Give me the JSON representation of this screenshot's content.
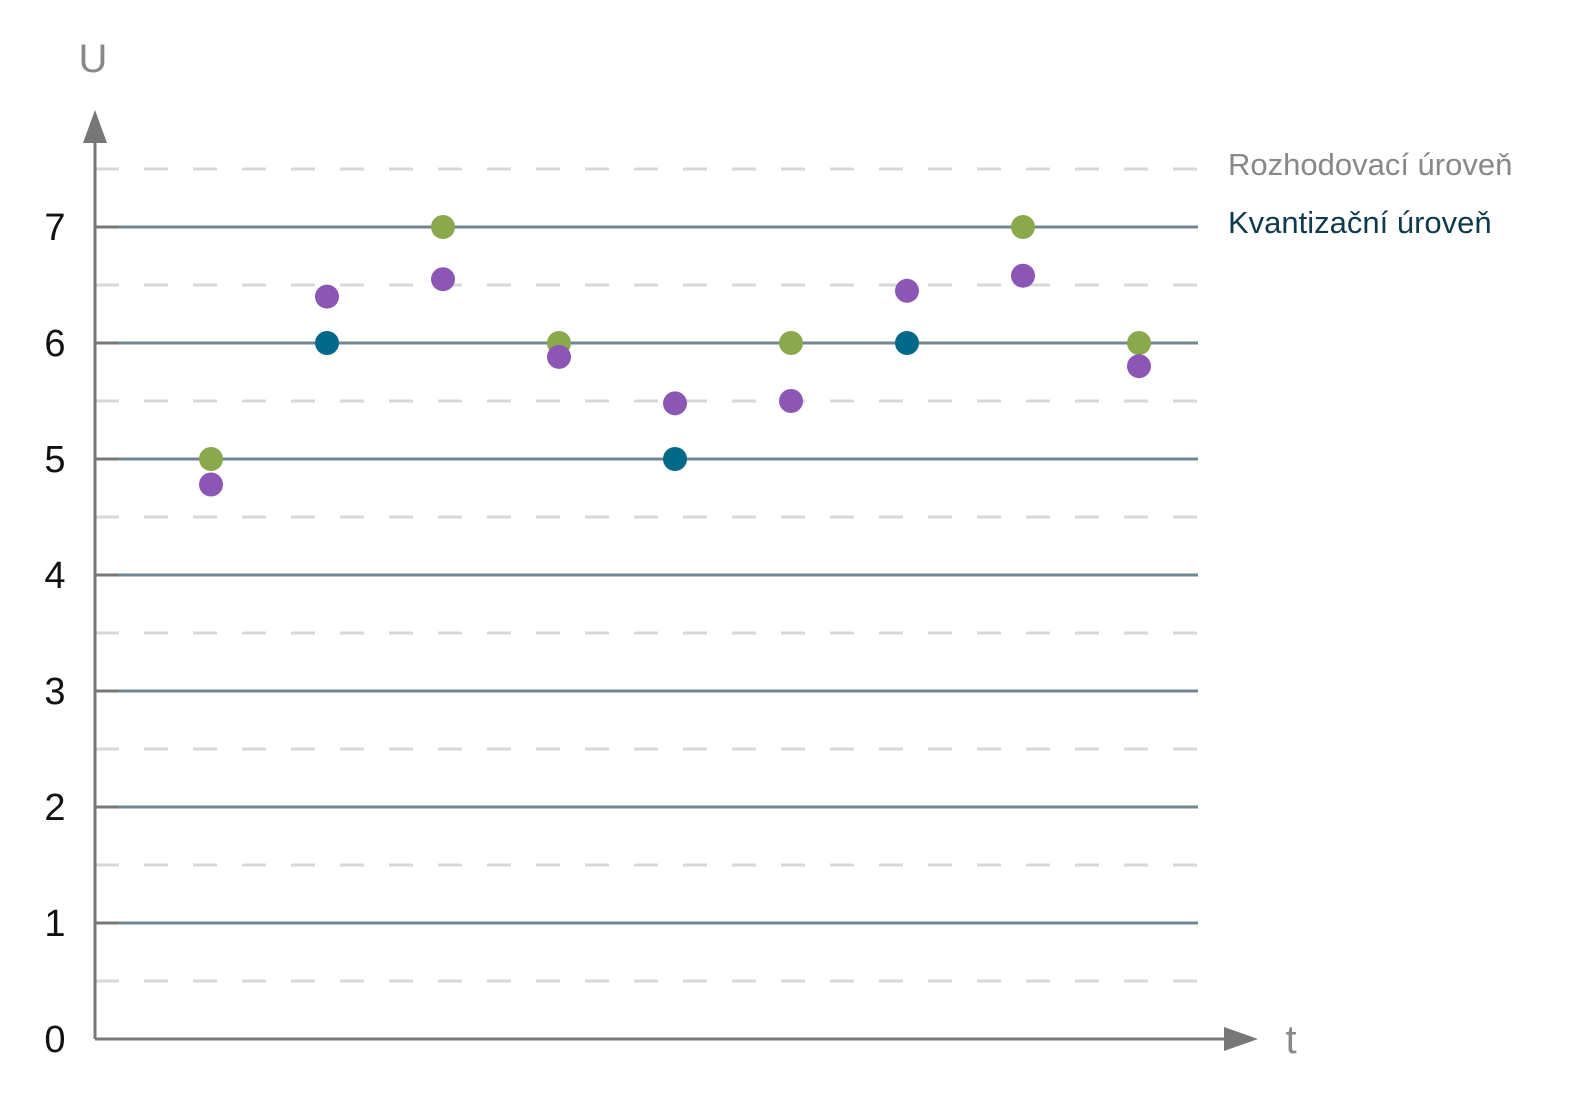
{
  "chart_data": {
    "type": "scatter",
    "title": "",
    "xlabel": "t",
    "ylabel": "U",
    "ylim": [
      0,
      7.5
    ],
    "y_ticks": [
      "0",
      "1",
      "2",
      "3",
      "4",
      "5",
      "6",
      "7"
    ],
    "quantization_levels": [
      1,
      2,
      3,
      4,
      5,
      6,
      7
    ],
    "decision_levels": [
      0.5,
      1.5,
      2.5,
      3.5,
      4.5,
      5.5,
      6.5,
      7.5
    ],
    "legend": {
      "placement": "right",
      "decision_label": "Rozhodovací úroveň",
      "quantization_label": "Kvantizační úroveň"
    },
    "x": [
      1,
      2,
      3,
      4,
      5,
      6,
      7,
      8,
      9
    ],
    "series": [
      {
        "role": "samples",
        "color": "#8c57b4",
        "values": [
          4.78,
          6.4,
          6.55,
          5.88,
          5.48,
          5.5,
          6.45,
          6.58,
          5.8
        ]
      },
      {
        "role": "quantized",
        "values": [
          5,
          6,
          7,
          6,
          5,
          6,
          6,
          7,
          6
        ],
        "point_colors": [
          "#8aa84c",
          "#006888",
          "#8aa84c",
          "#8aa84c",
          "#006888",
          "#8aa84c",
          "#006888",
          "#8aa84c",
          "#8aa84c"
        ]
      }
    ],
    "colors": {
      "axis": "#777777",
      "quantization_line": "#6f8791",
      "decision_line": "#d8d8d8",
      "decision_text": "#888888",
      "quantization_text": "#0f3a4e"
    }
  }
}
